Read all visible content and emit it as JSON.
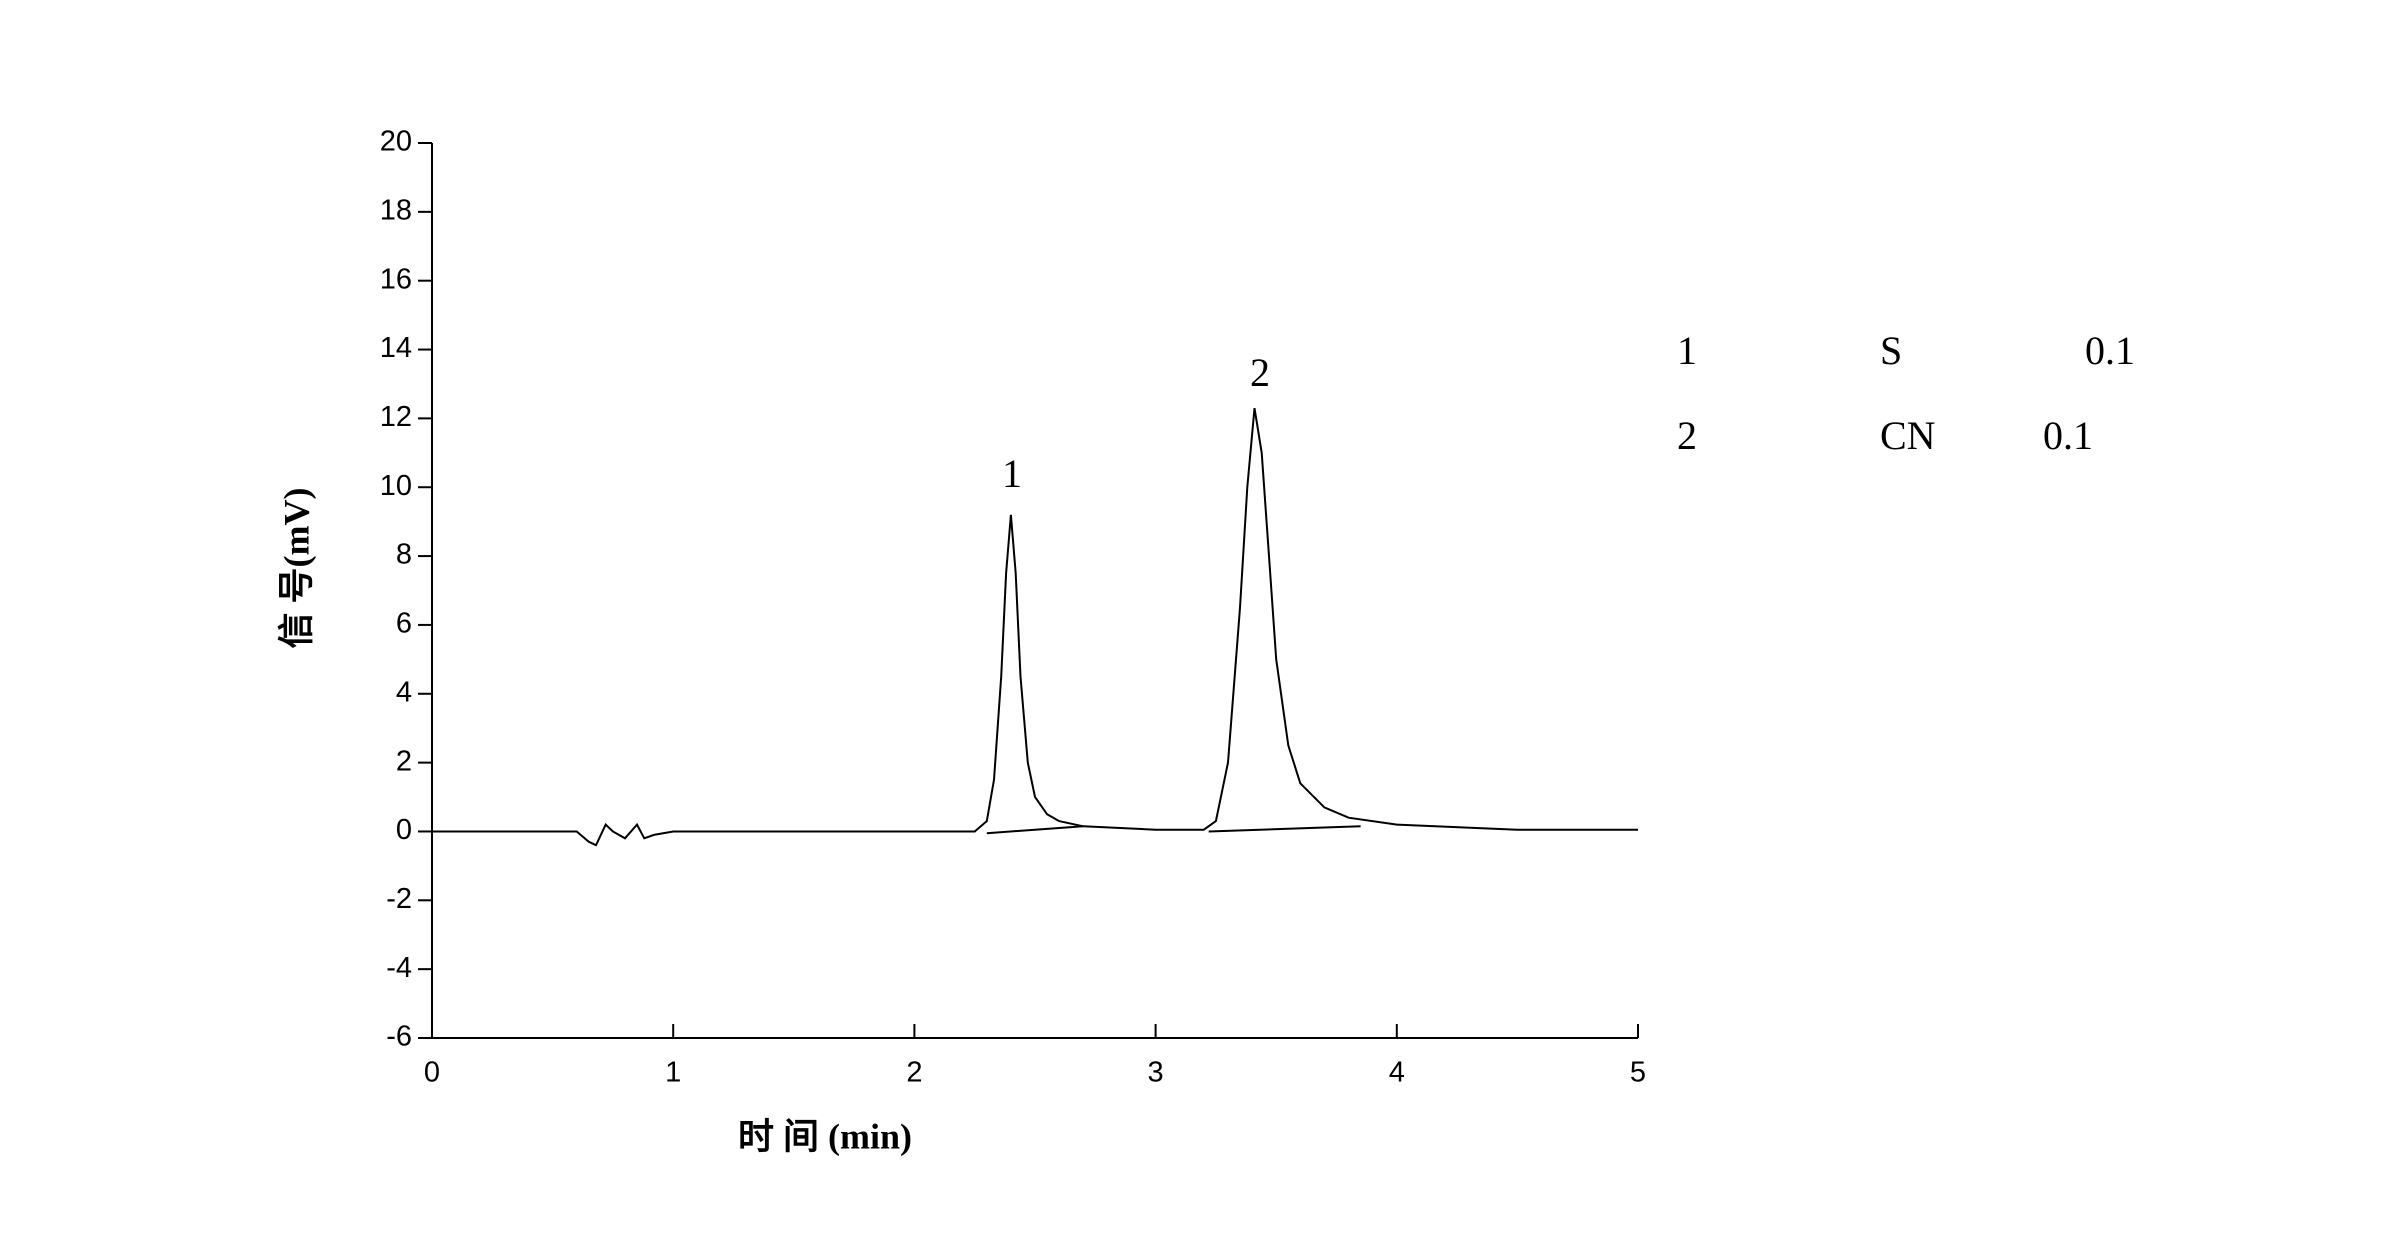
{
  "chart_data": {
    "type": "line",
    "xlabel": "时 间 (min)",
    "ylabel": "信 号(mV)",
    "xlim": [
      0,
      5
    ],
    "xticks": [
      0,
      1,
      2,
      3,
      4,
      5
    ],
    "ylim": [
      -6,
      20
    ],
    "yticks": [
      -6,
      -4,
      -2,
      0,
      2,
      4,
      6,
      8,
      10,
      12,
      14,
      16,
      18,
      20
    ],
    "series": [
      {
        "color": "#000000",
        "x": [
          0,
          0.05,
          0.3,
          0.6,
          0.65,
          0.68,
          0.72,
          0.75,
          0.8,
          0.85,
          0.88,
          0.92,
          1.0,
          1.5,
          2.0,
          2.25,
          2.3,
          2.33,
          2.36,
          2.38,
          2.4,
          2.42,
          2.44,
          2.47,
          2.5,
          2.55,
          2.6,
          2.7,
          3.0,
          3.2,
          3.25,
          3.3,
          3.35,
          3.38,
          3.41,
          3.44,
          3.47,
          3.5,
          3.55,
          3.6,
          3.7,
          3.8,
          4.0,
          4.5,
          5.0
        ],
        "values": [
          0,
          0,
          0,
          0,
          -0.3,
          -0.4,
          0.2,
          0,
          -0.2,
          0.2,
          -0.2,
          -0.1,
          0,
          0,
          0,
          0,
          0.3,
          1.5,
          4.5,
          7.5,
          9.2,
          7.5,
          4.5,
          2,
          1,
          0.5,
          0.3,
          0.15,
          0.05,
          0.05,
          0.3,
          2,
          6.5,
          10,
          12.3,
          11,
          8,
          5,
          2.5,
          1.4,
          0.7,
          0.4,
          0.2,
          0.05,
          0.05
        ]
      }
    ],
    "baselines": [
      {
        "x": [
          2.3,
          2.7
        ],
        "values": [
          -0.05,
          0.15
        ]
      },
      {
        "x": [
          3.22,
          3.85
        ],
        "values": [
          0,
          0.15
        ]
      }
    ],
    "peak_labels": [
      "1",
      "2"
    ],
    "peak_table": [
      [
        "1",
        "S",
        "0.1"
      ],
      [
        "2",
        "CN",
        "0.1"
      ]
    ]
  }
}
